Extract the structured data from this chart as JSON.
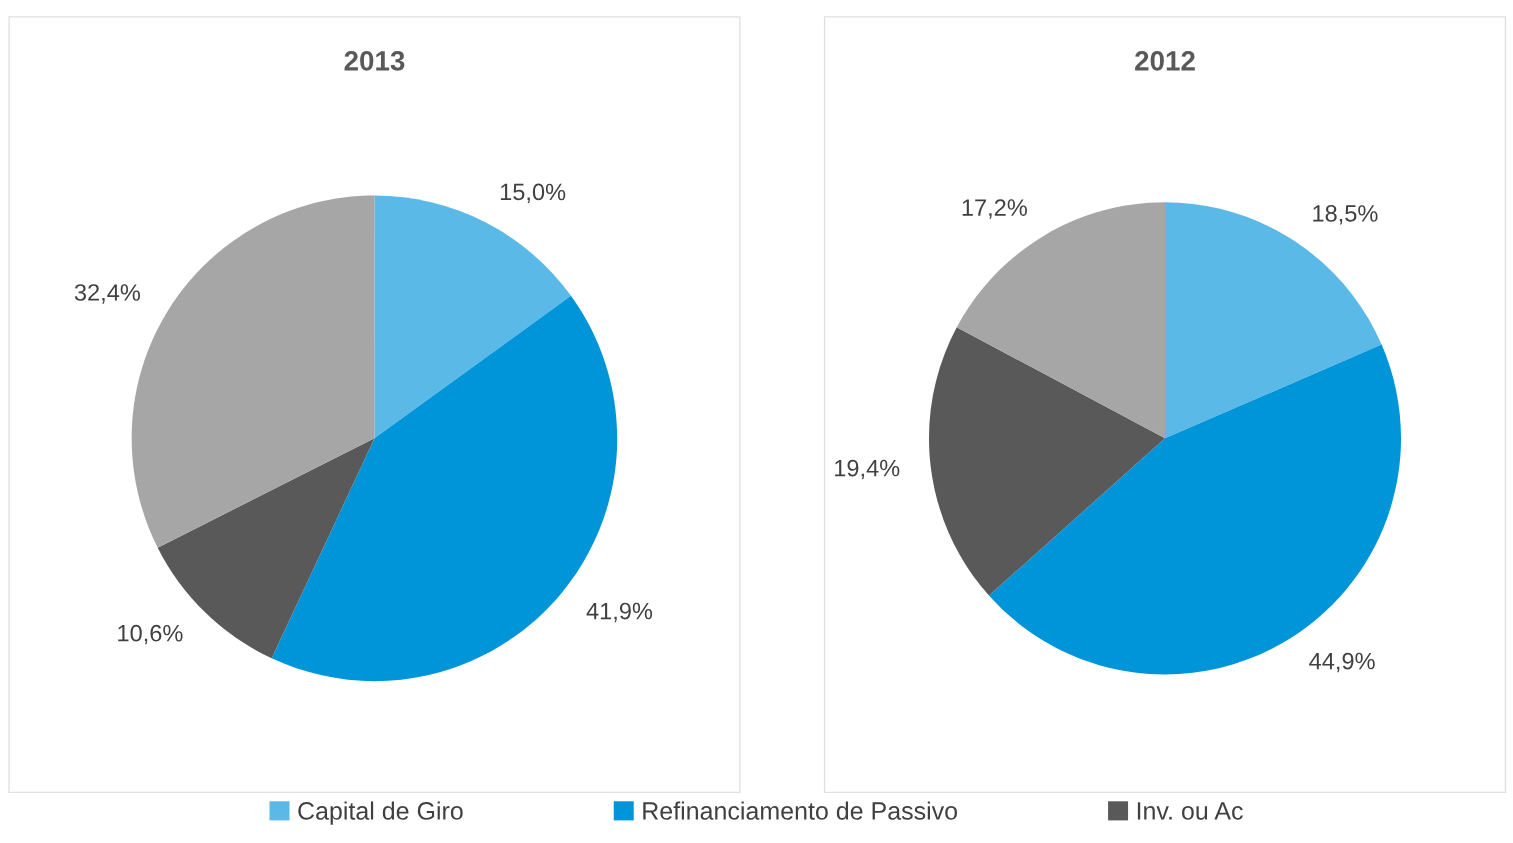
{
  "chart_data": [
    {
      "type": "pie",
      "title": "2013",
      "categories": [
        "Capital de Giro",
        "Refinanciamento de Passivo",
        "Inv. ou Ac",
        null
      ],
      "values": [
        15.0,
        41.9,
        10.6,
        32.4
      ],
      "value_labels": [
        "15,0%",
        "41,9%",
        "10,6%",
        "32,4%"
      ],
      "colors": [
        "#5bb9e8",
        "#0095d9",
        "#595959",
        "#a6a6a6"
      ],
      "legend": "bottom"
    },
    {
      "type": "pie",
      "title": "2012",
      "categories": [
        null,
        null,
        null,
        null
      ],
      "values": [
        18.5,
        44.9,
        19.4,
        17.2
      ],
      "value_labels": [
        "18,5%",
        "44,9%",
        "19,4%",
        "17,2%"
      ],
      "colors": [
        "#5bb9e8",
        "#0095d9",
        "#595959",
        "#a6a6a6"
      ]
    }
  ]
}
